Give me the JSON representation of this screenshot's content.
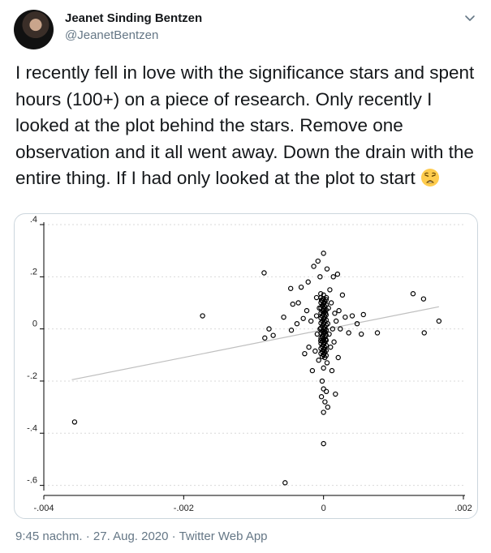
{
  "author": {
    "name": "Jeanet Sinding Bentzen",
    "handle": "@JeanetBentzen"
  },
  "tweet": {
    "text": "I recently fell in love with the significance stars and spent hours (100+) on a piece of research. Only recently I looked at the plot behind the stars. Remove one observation and it all went away. Down the drain with the entire thing. If I had only looked at the plot to start",
    "emoji": "weary-face"
  },
  "footer": {
    "time": "9:45 nachm.",
    "sep1": "·",
    "date": "27. Aug. 2020",
    "sep2": "·",
    "client": "Twitter Web App"
  },
  "colors": {
    "text": "#14171a",
    "secondary": "#657786",
    "border": "#ccd6dd",
    "fit_line": "#bfbfbf"
  },
  "chart_data": {
    "type": "scatter",
    "title": "",
    "xlabel": "",
    "ylabel": "",
    "xlim": [
      -0.004,
      0.002
    ],
    "ylim": [
      -0.62,
      0.4
    ],
    "x_ticks": [
      {
        "value": -0.004,
        "label": "-.004"
      },
      {
        "value": -0.002,
        "label": "-.002"
      },
      {
        "value": 0,
        "label": "0"
      },
      {
        "value": 0.002,
        "label": ".002"
      }
    ],
    "y_ticks": [
      {
        "value": 0.4,
        "label": ".4"
      },
      {
        "value": 0.2,
        "label": ".2"
      },
      {
        "value": 0,
        "label": "0"
      },
      {
        "value": -0.2,
        "label": "-.2"
      },
      {
        "value": -0.4,
        "label": "-.4"
      },
      {
        "value": -0.6,
        "label": "-.6"
      }
    ],
    "grid": "horizontal dashed",
    "fit_line": {
      "x": [
        -0.0036,
        0.00165
      ],
      "y": [
        -0.195,
        0.085
      ]
    },
    "points": [
      [
        -0.00356,
        -0.357
      ],
      [
        -0.00173,
        0.05
      ],
      [
        -0.00085,
        0.215
      ],
      [
        -0.00084,
        -0.035
      ],
      [
        -0.00078,
        0.0
      ],
      [
        -0.00072,
        -0.025
      ],
      [
        -0.00057,
        0.045
      ],
      [
        -0.00055,
        -0.59
      ],
      [
        -0.00047,
        0.155
      ],
      [
        -0.00046,
        -0.005
      ],
      [
        -0.00044,
        0.095
      ],
      [
        -0.00038,
        0.02
      ],
      [
        -0.00036,
        0.1
      ],
      [
        -0.00032,
        0.16
      ],
      [
        -0.00029,
        0.04
      ],
      [
        -0.00027,
        -0.095
      ],
      [
        -0.00024,
        0.07
      ],
      [
        -0.00022,
        0.18
      ],
      [
        -0.00021,
        -0.07
      ],
      [
        -0.00018,
        0.03
      ],
      [
        -0.00016,
        -0.16
      ],
      [
        -0.00014,
        0.24
      ],
      [
        -0.00012,
        -0.085
      ],
      [
        -0.0001,
        0.12
      ],
      [
        -0.0001,
        0.05
      ],
      [
        -9e-05,
        -0.02
      ],
      [
        -8e-05,
        0.26
      ],
      [
        -7e-05,
        -0.12
      ],
      [
        -6e-05,
        0.08
      ],
      [
        -5e-05,
        0.0
      ],
      [
        -5e-05,
        0.2
      ],
      [
        -4e-05,
        0.135
      ],
      [
        -4e-05,
        -0.045
      ],
      [
        -3e-05,
        0.11
      ],
      [
        -3e-05,
        -0.26
      ],
      [
        -2e-05,
        0.05
      ],
      [
        -2e-05,
        -0.2
      ],
      [
        -1e-05,
        0.09
      ],
      [
        -1e-05,
        -0.03
      ],
      [
        0.0,
        0.29
      ],
      [
        0.0,
        0.13
      ],
      [
        0.0,
        0.07
      ],
      [
        0.0,
        0.02
      ],
      [
        0.0,
        -0.01
      ],
      [
        0.0,
        -0.06
      ],
      [
        0.0,
        -0.1
      ],
      [
        0.0,
        -0.15
      ],
      [
        0.0,
        -0.23
      ],
      [
        0.0,
        -0.32
      ],
      [
        0.0,
        -0.44
      ],
      [
        1e-05,
        0.1
      ],
      [
        1e-05,
        0.04
      ],
      [
        1e-05,
        -0.08
      ],
      [
        2e-05,
        0.0
      ],
      [
        2e-05,
        -0.28
      ],
      [
        3e-05,
        0.06
      ],
      [
        3e-05,
        -0.04
      ],
      [
        4e-05,
        0.12
      ],
      [
        4e-05,
        -0.24
      ],
      [
        5e-05,
        0.23
      ],
      [
        5e-05,
        -0.13
      ],
      [
        6e-05,
        0.02
      ],
      [
        6e-05,
        -0.3
      ],
      [
        7e-05,
        0.08
      ],
      [
        8e-05,
        -0.02
      ],
      [
        9e-05,
        0.15
      ],
      [
        0.0001,
        -0.07
      ],
      [
        0.00011,
        0.1
      ],
      [
        0.00012,
        -0.16
      ],
      [
        0.00013,
        0.0
      ],
      [
        0.00014,
        0.2
      ],
      [
        0.00015,
        -0.05
      ],
      [
        0.00016,
        0.06
      ],
      [
        0.00017,
        -0.25
      ],
      [
        0.00018,
        0.03
      ],
      [
        0.0002,
        0.21
      ],
      [
        0.00021,
        -0.11
      ],
      [
        0.00022,
        0.07
      ],
      [
        0.00024,
        0.0
      ],
      [
        0.00027,
        0.13
      ],
      [
        0.00031,
        0.045
      ],
      [
        0.00036,
        -0.015
      ],
      [
        0.00041,
        0.05
      ],
      [
        0.00048,
        0.02
      ],
      [
        0.00054,
        -0.02
      ],
      [
        0.00057,
        0.055
      ],
      [
        0.00077,
        -0.015
      ],
      [
        0.00128,
        0.135
      ],
      [
        0.00144,
        -0.015
      ],
      [
        0.00143,
        0.115
      ],
      [
        0.00165,
        0.03
      ]
    ]
  }
}
